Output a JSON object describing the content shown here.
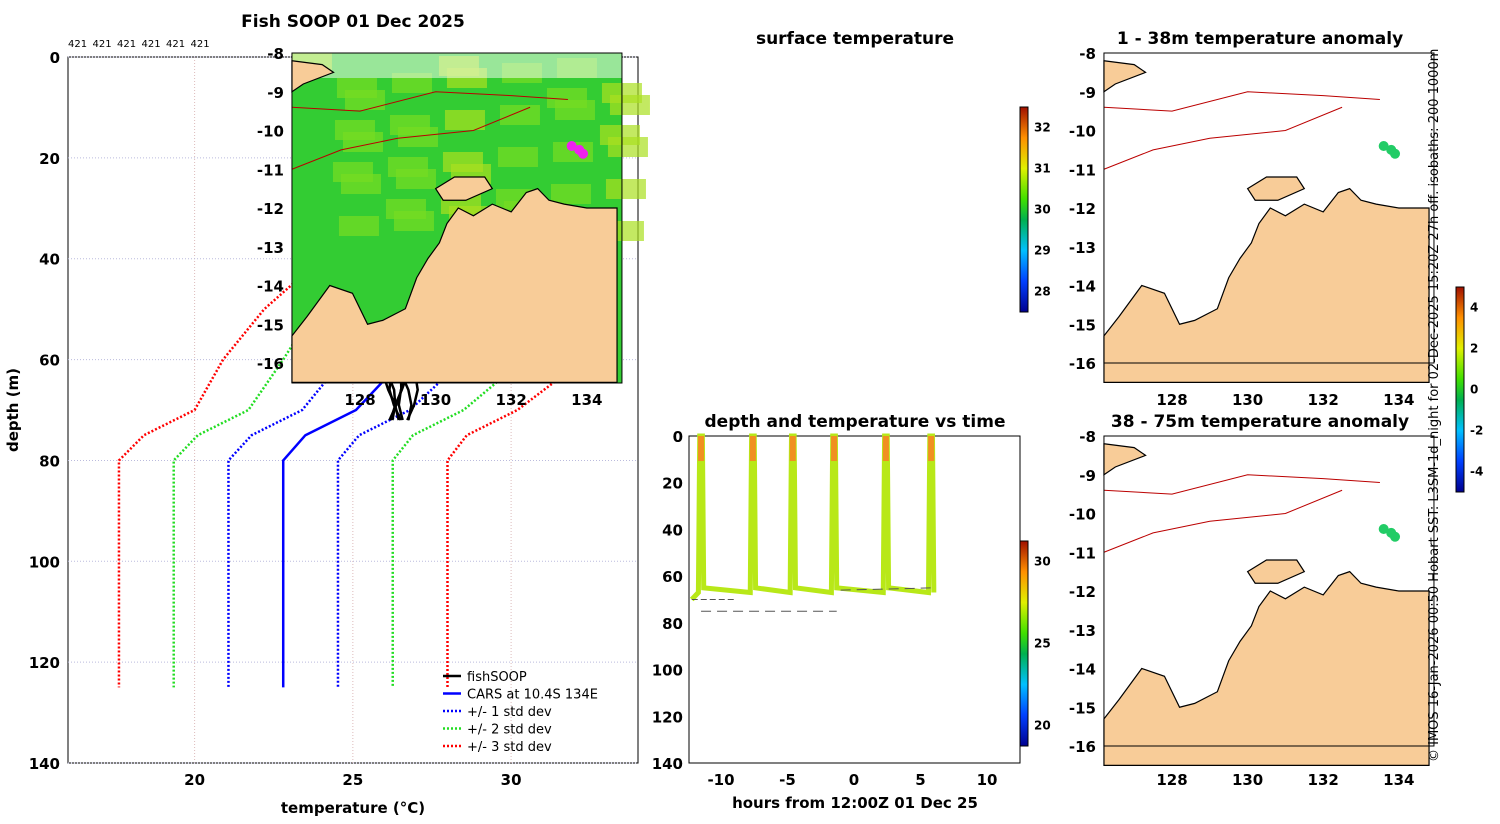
{
  "profile": {
    "title": "Fish SOOP 01 Dec 2025",
    "counts": [
      "421",
      "421",
      "421",
      "421",
      "421",
      "421"
    ],
    "xlabel": "temperature (°C)",
    "ylabel": "depth (m)",
    "xticks": [
      "20",
      "25",
      "30"
    ],
    "yticks": [
      "0",
      "20",
      "40",
      "60",
      "80",
      "100",
      "120",
      "140"
    ],
    "legend": [
      "fishSOOP",
      "CARS at 10.4S 134E",
      "+/- 1 std dev",
      "+/- 2 std dev",
      "+/- 3 std dev"
    ]
  },
  "sst": {
    "title": "surface temperature",
    "xticks": [
      "128",
      "130",
      "132",
      "134"
    ],
    "yticks": [
      "-8",
      "-9",
      "-10",
      "-11",
      "-12",
      "-13",
      "-14",
      "-15",
      "-16"
    ],
    "cbticks": [
      "32",
      "31",
      "30",
      "29",
      "28"
    ]
  },
  "dt": {
    "title": "depth and temperature vs time",
    "xlabel": "hours from 12:00Z 01 Dec 25",
    "xticks": [
      "-10",
      "-5",
      "0",
      "5",
      "10"
    ],
    "yticks": [
      "0",
      "20",
      "40",
      "60",
      "80",
      "100",
      "120",
      "140"
    ],
    "cbticks": [
      "30",
      "25",
      "20"
    ]
  },
  "an1": {
    "title": "1 - 38m temperature anomaly",
    "xticks": [
      "128",
      "130",
      "132",
      "134"
    ],
    "yticks": [
      "-8",
      "-9",
      "-10",
      "-11",
      "-12",
      "-13",
      "-14",
      "-15",
      "-16"
    ]
  },
  "an2": {
    "title": "38 - 75m temperature anomaly",
    "xticks": [
      "128",
      "130",
      "132",
      "134"
    ],
    "yticks": [
      "-8",
      "-9",
      "-10",
      "-11",
      "-12",
      "-13",
      "-14",
      "-15",
      "-16"
    ]
  },
  "anom_cb": {
    "ticks": [
      "4",
      "2",
      "0",
      "-2",
      "-4"
    ]
  },
  "credit": "© IMOS 16-Jan-2026 00:50 Hobart SST: L3SM-1d_night for 02-Dec-2025 15:20Z 27h off. isobaths: 200  1000m",
  "chart_data": {
    "type": "line",
    "title": "Fish SOOP 01 Dec 2025",
    "xlabel": "temperature (°C)",
    "ylabel": "depth (m)",
    "xlim": [
      16,
      34
    ],
    "ylim": [
      140,
      0
    ],
    "cars_depth": [
      0,
      10,
      20,
      30,
      40,
      50,
      60,
      70,
      75,
      80,
      125
    ],
    "cars_mean": [
      29.5,
      29.2,
      28.9,
      28.3,
      27.6,
      27.0,
      26.6,
      25.1,
      23.5,
      22.8,
      22.8
    ],
    "cars_std": [
      1.25,
      1.1,
      1.0,
      1.07,
      1.2,
      1.6,
      1.9,
      1.7,
      1.7,
      1.73,
      1.73
    ],
    "fish_profiles_surface_temp": [
      29.2,
      29.4,
      29.6,
      29.8,
      30.0,
      28.5,
      28.7,
      29.9
    ],
    "fish_profiles_bottom_temp": [
      26.1,
      26.3,
      26.5,
      26.7,
      26.4,
      26.2,
      26.6,
      26.8
    ],
    "dive_hours": [
      -11.5,
      -7.6,
      -4.6,
      -1.5,
      2.4,
      5.8
    ],
    "bottom_depth_m": 70
  }
}
